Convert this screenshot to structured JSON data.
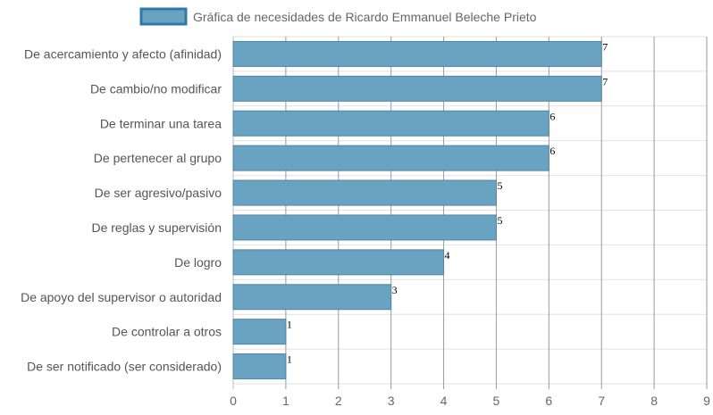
{
  "chart_data": {
    "type": "bar",
    "orientation": "horizontal",
    "categories": [
      "De acercamiento y afecto (afinidad)",
      "De cambio/no modificar",
      "De terminar una tarea",
      "De pertenecer al grupo",
      "De ser agresivo/pasivo",
      "De reglas y supervisión",
      "De logro",
      "De apoyo del supervisor o autoridad",
      "De controlar a otros",
      "De ser notificado (ser considerado)"
    ],
    "series": [
      {
        "name": "Gráfica de necesidades de Ricardo Emmanuel Beleche Prieto",
        "values": [
          7,
          7,
          6,
          6,
          5,
          5,
          4,
          3,
          1,
          1
        ]
      }
    ],
    "xlim": [
      0,
      9
    ],
    "xticks": [
      "0",
      "1",
      "2",
      "3",
      "4",
      "5",
      "6",
      "7",
      "8",
      "9"
    ],
    "grid": true,
    "legend_position": "top-center",
    "colors": {
      "bar_fill": "#6aa3c2",
      "bar_border": "#4f87a6",
      "legend_border": "#2e7aa6",
      "grid": "#e2e2e2"
    }
  }
}
